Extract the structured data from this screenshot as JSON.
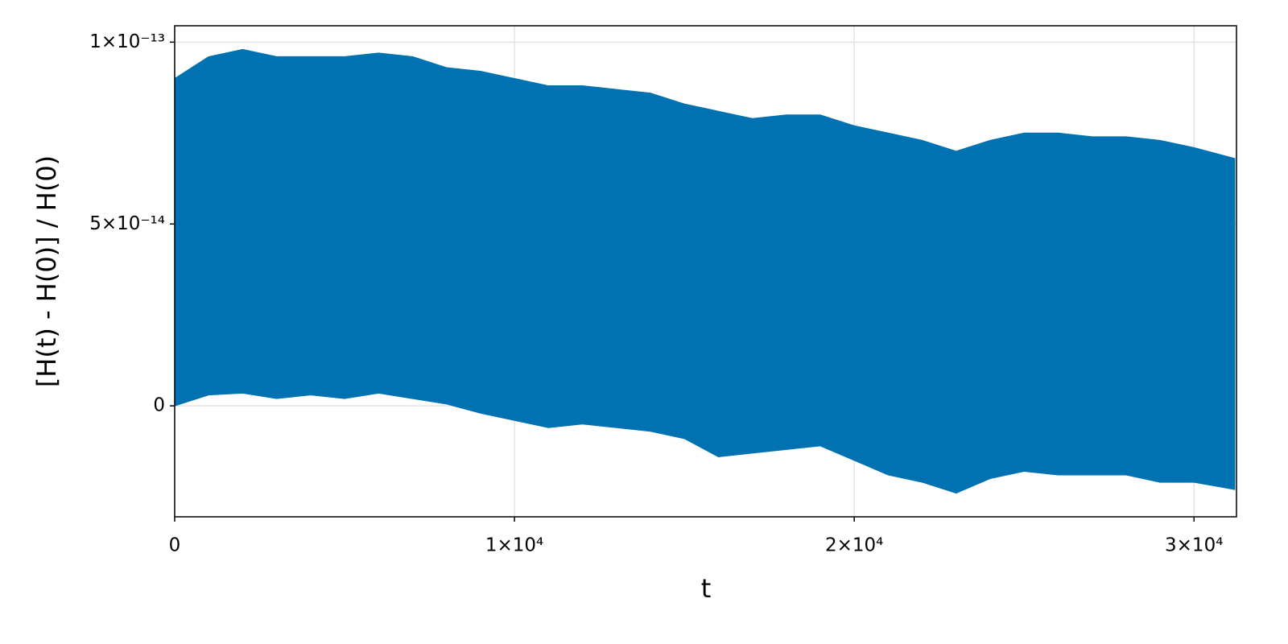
{
  "chart_data": {
    "type": "band",
    "x_label": "t",
    "y_label": "[H(t) - H(0)] / H(0)",
    "color": "#0072b2",
    "x": [
      0,
      1000,
      2000,
      3000,
      4000,
      5000,
      6000,
      7000,
      8000,
      9000,
      10000,
      11000,
      12000,
      13000,
      14000,
      15000,
      16000,
      17000,
      18000,
      19000,
      20000,
      21000,
      22000,
      23000,
      24000,
      25000,
      26000,
      27000,
      28000,
      29000,
      30000,
      31200
    ],
    "upper": [
      9e-14,
      9.6e-14,
      9.8e-14,
      9.6e-14,
      9.6e-14,
      9.6e-14,
      9.7e-14,
      9.6e-14,
      9.3e-14,
      9.2e-14,
      9e-14,
      8.8e-14,
      8.8e-14,
      8.7e-14,
      8.6e-14,
      8.3e-14,
      8.1e-14,
      7.9e-14,
      8e-14,
      8e-14,
      7.7e-14,
      7.5e-14,
      7.3e-14,
      7e-14,
      7.3e-14,
      7.5e-14,
      7.5e-14,
      7.4e-14,
      7.4e-14,
      7.3e-14,
      7.1e-14,
      6.8e-14
    ],
    "lower": [
      0.0,
      3e-15,
      3.5e-15,
      2e-15,
      3e-15,
      2e-15,
      3.5e-15,
      2e-15,
      5e-16,
      -2e-15,
      -4e-15,
      -6e-15,
      -5e-15,
      -6e-15,
      -7e-15,
      -9e-15,
      -1.4e-14,
      -1.3e-14,
      -1.2e-14,
      -1.1e-14,
      -1.5e-14,
      -1.9e-14,
      -2.1e-14,
      -2.4e-14,
      -2e-14,
      -1.8e-14,
      -1.9e-14,
      -1.9e-14,
      -1.9e-14,
      -2.1e-14,
      -2.1e-14,
      -2.3e-14
    ],
    "xlim": [
      0,
      31250
    ],
    "ylim": [
      -3.05e-14,
      1.045e-13
    ],
    "xticks": [
      0,
      {
        "value": 10000,
        "label": "1×10⁴"
      },
      {
        "value": 20000,
        "label": "2×10⁴"
      },
      {
        "value": 30000,
        "label": "3×10⁴"
      }
    ],
    "yticks": [
      0,
      {
        "value": 5e-14,
        "label": "5×10⁻¹⁴"
      },
      {
        "value": 1e-13,
        "label": "1×10⁻¹³"
      }
    ],
    "grid": true
  }
}
